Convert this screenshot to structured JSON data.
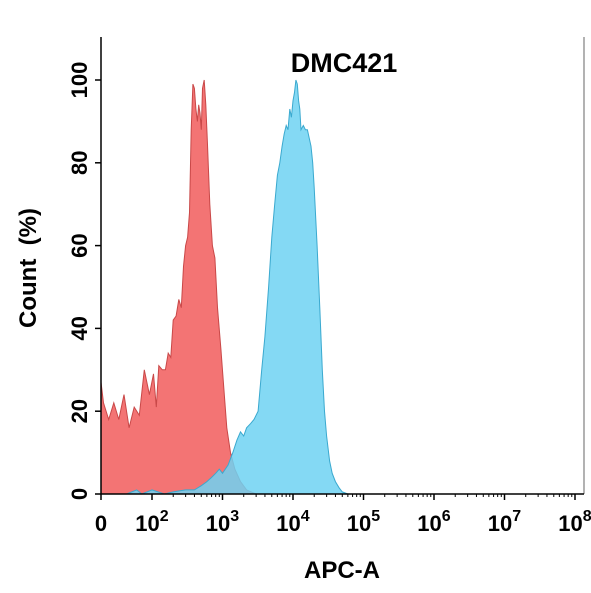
{
  "chart_data": {
    "type": "area",
    "title": "DMC421",
    "xlabel": "APC-A",
    "ylabel": "Count  (%)",
    "ylim": [
      0,
      110
    ],
    "y_ticks": [
      0,
      20,
      40,
      60,
      80,
      100
    ],
    "x_scale": "biexponential (0, then log10 decades)",
    "x_ticks": [
      {
        "value": 0,
        "base": "0",
        "exp": ""
      },
      {
        "value": 100,
        "base": "10",
        "exp": "2"
      },
      {
        "value": 1000,
        "base": "10",
        "exp": "3"
      },
      {
        "value": 10000,
        "base": "10",
        "exp": "4"
      },
      {
        "value": 100000,
        "base": "10",
        "exp": "5"
      },
      {
        "value": 1000000,
        "base": "10",
        "exp": "6"
      },
      {
        "value": 10000000,
        "base": "10",
        "exp": "7"
      },
      {
        "value": 100000000,
        "base": "10",
        "exp": "8"
      }
    ],
    "grid": false,
    "legend": "none",
    "series": [
      {
        "color": "#f26d6d",
        "stroke": "#c94848",
        "points": [
          [
            0,
            0
          ],
          [
            0,
            27
          ],
          [
            5,
            22
          ],
          [
            15,
            18
          ],
          [
            25,
            22
          ],
          [
            35,
            18
          ],
          [
            45,
            24
          ],
          [
            55,
            16
          ],
          [
            65,
            21
          ],
          [
            75,
            19
          ],
          [
            85,
            30
          ],
          [
            95,
            24
          ],
          [
            105,
            29
          ],
          [
            115,
            21
          ],
          [
            125,
            31
          ],
          [
            140,
            30
          ],
          [
            155,
            30
          ],
          [
            170,
            34
          ],
          [
            185,
            33
          ],
          [
            200,
            42
          ],
          [
            220,
            43
          ],
          [
            240,
            47
          ],
          [
            260,
            45
          ],
          [
            280,
            55
          ],
          [
            300,
            60
          ],
          [
            320,
            62
          ],
          [
            340,
            68
          ],
          [
            360,
            88
          ],
          [
            380,
            99
          ],
          [
            400,
            98
          ],
          [
            420,
            93
          ],
          [
            440,
            90
          ],
          [
            460,
            94
          ],
          [
            480,
            92
          ],
          [
            500,
            88
          ],
          [
            520,
            98
          ],
          [
            550,
            100
          ],
          [
            580,
            94
          ],
          [
            610,
            85
          ],
          [
            660,
            70
          ],
          [
            720,
            60
          ],
          [
            780,
            57
          ],
          [
            850,
            45
          ],
          [
            950,
            35
          ],
          [
            1050,
            25
          ],
          [
            1150,
            16
          ],
          [
            1300,
            10
          ],
          [
            1500,
            6
          ],
          [
            1800,
            3
          ],
          [
            2200,
            1
          ],
          [
            3000,
            0
          ]
        ]
      },
      {
        "color": "#6fd2f2",
        "stroke": "#3aa9cf",
        "points": [
          [
            0,
            0
          ],
          [
            50,
            0
          ],
          [
            70,
            1
          ],
          [
            80,
            0
          ],
          [
            100,
            1
          ],
          [
            150,
            0
          ],
          [
            200,
            0.5
          ],
          [
            300,
            1
          ],
          [
            400,
            1
          ],
          [
            500,
            2
          ],
          [
            600,
            3
          ],
          [
            700,
            4
          ],
          [
            800,
            5
          ],
          [
            900,
            6
          ],
          [
            1000,
            5
          ],
          [
            1200,
            7
          ],
          [
            1400,
            10
          ],
          [
            1600,
            13
          ],
          [
            1800,
            15
          ],
          [
            2000,
            14
          ],
          [
            2200,
            16
          ],
          [
            2500,
            17
          ],
          [
            2800,
            18
          ],
          [
            3200,
            20
          ],
          [
            3600,
            30
          ],
          [
            4000,
            38
          ],
          [
            4500,
            50
          ],
          [
            5000,
            62
          ],
          [
            5500,
            70
          ],
          [
            6000,
            77
          ],
          [
            6500,
            80
          ],
          [
            7000,
            84
          ],
          [
            7500,
            87
          ],
          [
            8000,
            89
          ],
          [
            8500,
            88
          ],
          [
            9000,
            93
          ],
          [
            9500,
            91
          ],
          [
            10000,
            95
          ],
          [
            10500,
            97
          ],
          [
            11000,
            100
          ],
          [
            11500,
            99
          ],
          [
            12000,
            95
          ],
          [
            12500,
            93
          ],
          [
            13000,
            88
          ],
          [
            14000,
            89
          ],
          [
            15000,
            88
          ],
          [
            16000,
            88
          ],
          [
            17000,
            86
          ],
          [
            18000,
            84
          ],
          [
            19000,
            80
          ],
          [
            20000,
            74
          ],
          [
            22000,
            60
          ],
          [
            24000,
            45
          ],
          [
            26000,
            30
          ],
          [
            28000,
            20
          ],
          [
            30000,
            14
          ],
          [
            33000,
            8
          ],
          [
            36000,
            5
          ],
          [
            40000,
            3
          ],
          [
            45000,
            1.5
          ],
          [
            50000,
            0.5
          ],
          [
            60000,
            0
          ],
          [
            80000,
            0
          ]
        ]
      }
    ]
  }
}
